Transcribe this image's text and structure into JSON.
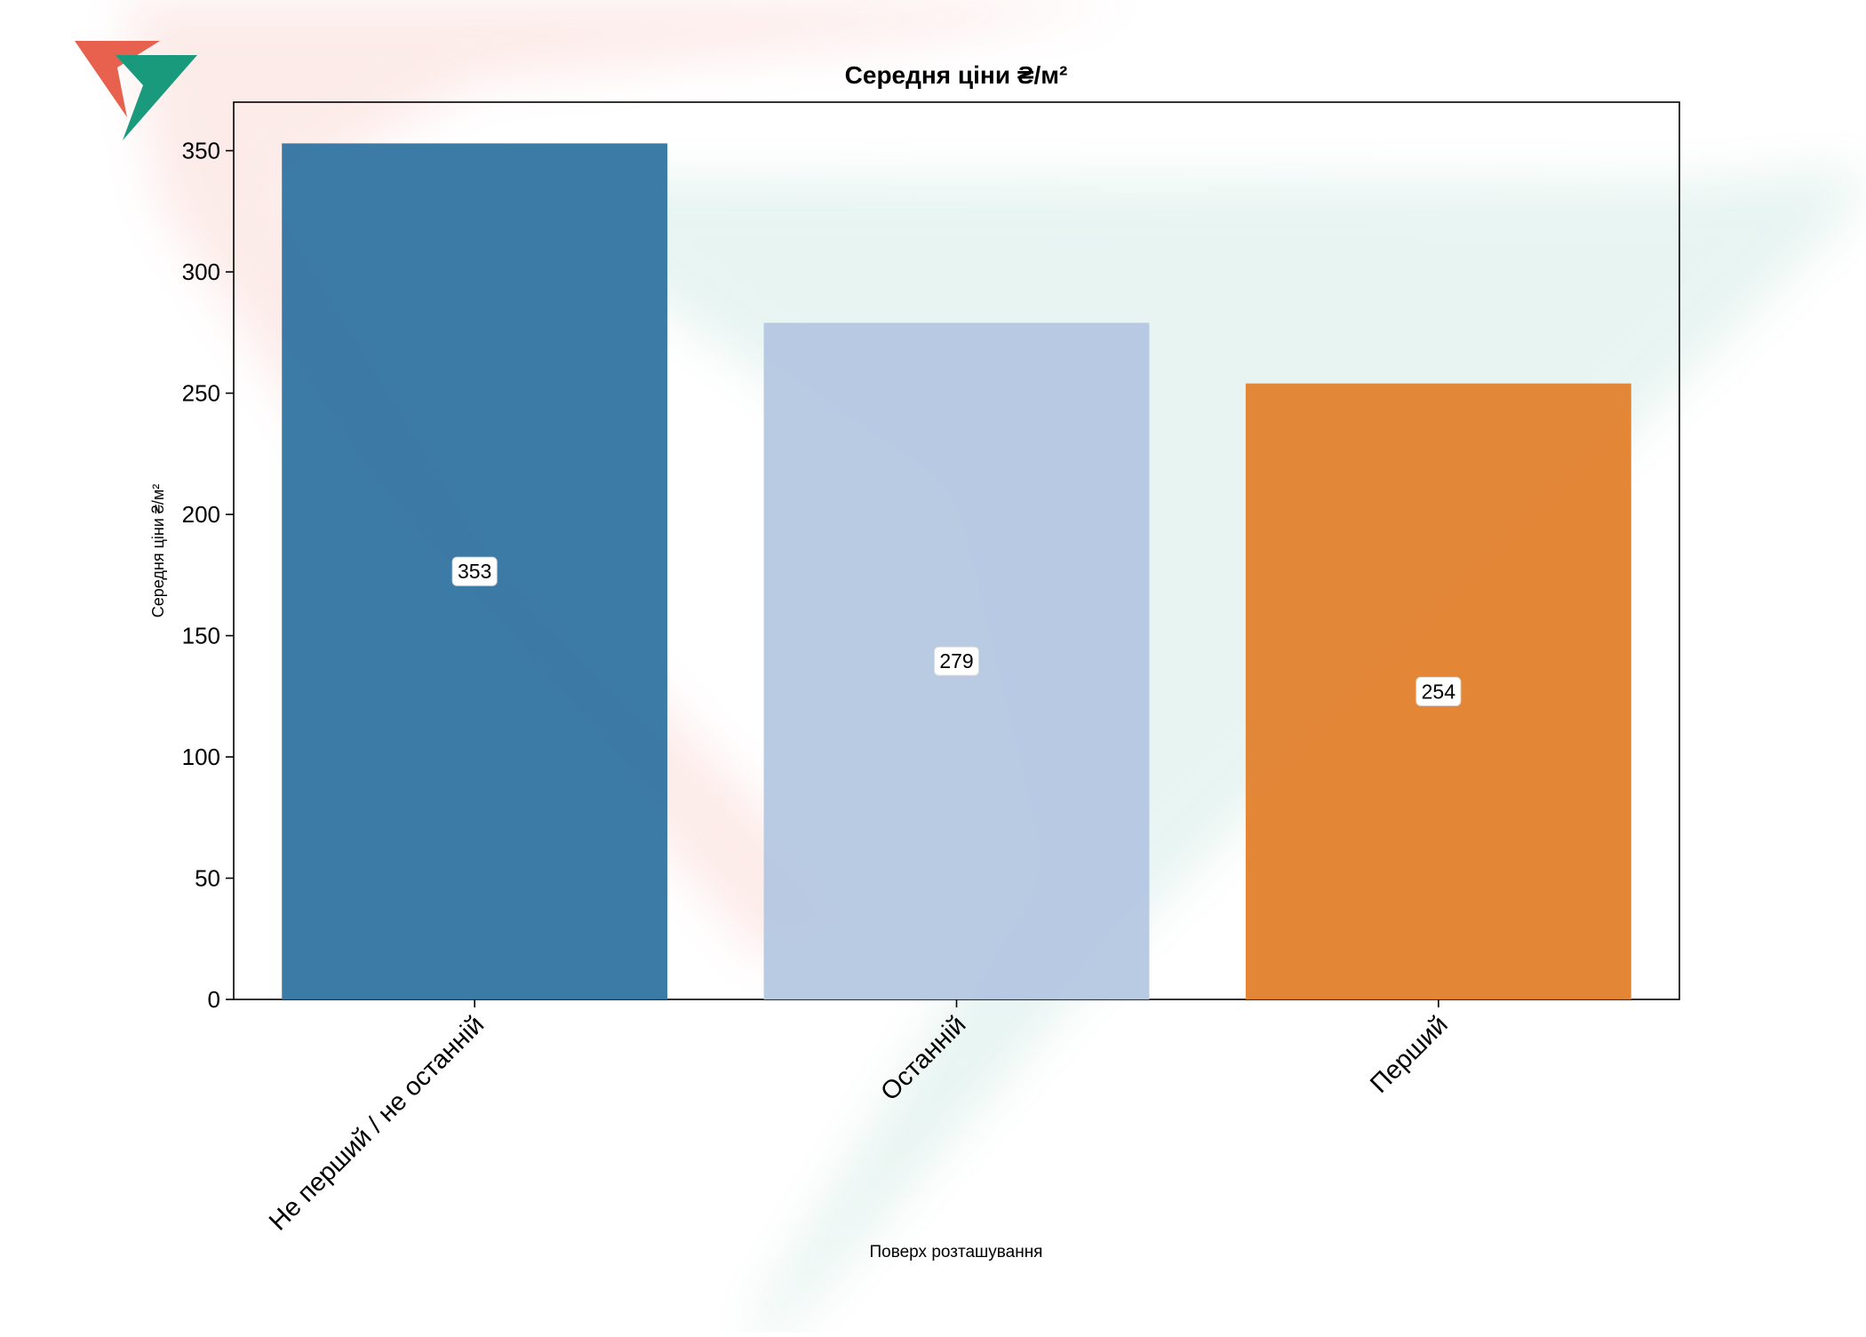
{
  "chart_data": {
    "type": "bar",
    "title": "Середня ціни ₴/м²",
    "xlabel": "Поверх розташування",
    "ylabel": "Середня ціни ₴/м²",
    "categories": [
      "Не перший / не останній",
      "Останній",
      "Перший"
    ],
    "values": [
      353,
      279,
      254
    ],
    "data_labels": [
      "353",
      "279",
      "254"
    ],
    "bar_colors": [
      "#3274a1",
      "#b5c7e1",
      "#e1812c"
    ],
    "ylim": [
      0,
      370
    ],
    "yticks": [
      0,
      50,
      100,
      150,
      200,
      250,
      300,
      350
    ],
    "ytick_labels": [
      "0",
      "50",
      "100",
      "150",
      "200",
      "250",
      "300",
      "350"
    ],
    "grid": false,
    "legend": "none"
  },
  "watermark": {
    "logo_icon": "triangle-check-logo-icon",
    "colors": {
      "red": "#e8604e",
      "green": "#1a9a7c"
    }
  }
}
